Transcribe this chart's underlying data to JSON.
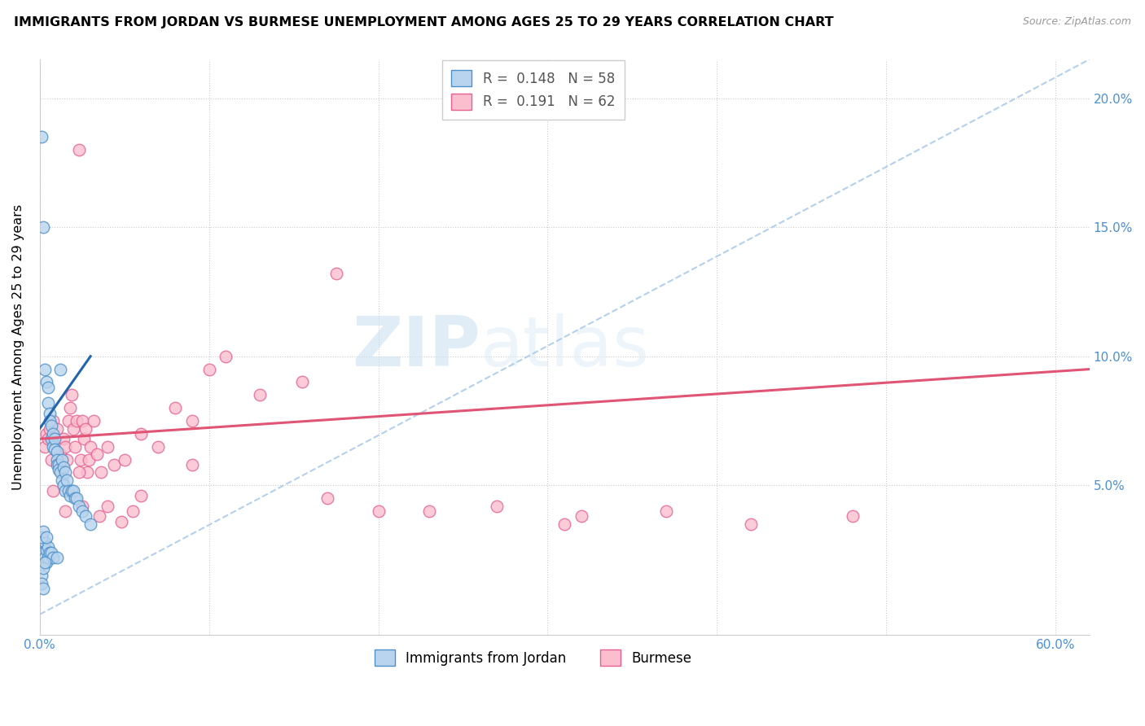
{
  "title": "IMMIGRANTS FROM JORDAN VS BURMESE UNEMPLOYMENT AMONG AGES 25 TO 29 YEARS CORRELATION CHART",
  "source": "Source: ZipAtlas.com",
  "ylabel": "Unemployment Among Ages 25 to 29 years",
  "xmin": 0.0,
  "xmax": 0.62,
  "ymin": -0.008,
  "ymax": 0.215,
  "jordan_R": "0.148",
  "jordan_N": "58",
  "burmese_R": "0.191",
  "burmese_N": "62",
  "jordan_color": "#b8d4ee",
  "burmese_color": "#fbbece",
  "jordan_edge_color": "#4e90c8",
  "burmese_edge_color": "#e86090",
  "jordan_line_color": "#2166ac",
  "burmese_line_color": "#e05575",
  "dashed_line_color": "#a8c8e8",
  "watermark_zip": "ZIP",
  "watermark_atlas": "atlas",
  "jordan_x": [
    0.001,
    0.001,
    0.002,
    0.002,
    0.003,
    0.003,
    0.003,
    0.004,
    0.004,
    0.004,
    0.005,
    0.005,
    0.005,
    0.005,
    0.006,
    0.006,
    0.006,
    0.007,
    0.007,
    0.007,
    0.008,
    0.008,
    0.008,
    0.009,
    0.009,
    0.01,
    0.01,
    0.01,
    0.01,
    0.011,
    0.011,
    0.012,
    0.012,
    0.013,
    0.013,
    0.014,
    0.014,
    0.015,
    0.015,
    0.016,
    0.017,
    0.018,
    0.019,
    0.02,
    0.021,
    0.022,
    0.023,
    0.025,
    0.027,
    0.03,
    0.001,
    0.002,
    0.004,
    0.001,
    0.002,
    0.003,
    0.001,
    0.002
  ],
  "jordan_y": [
    0.185,
    0.028,
    0.15,
    0.024,
    0.095,
    0.028,
    0.022,
    0.09,
    0.025,
    0.02,
    0.088,
    0.082,
    0.026,
    0.022,
    0.078,
    0.075,
    0.024,
    0.073,
    0.068,
    0.024,
    0.07,
    0.065,
    0.022,
    0.068,
    0.064,
    0.063,
    0.06,
    0.058,
    0.022,
    0.058,
    0.056,
    0.095,
    0.055,
    0.06,
    0.052,
    0.057,
    0.05,
    0.055,
    0.048,
    0.052,
    0.048,
    0.046,
    0.048,
    0.048,
    0.045,
    0.045,
    0.042,
    0.04,
    0.038,
    0.035,
    0.03,
    0.032,
    0.03,
    0.015,
    0.018,
    0.02,
    0.012,
    0.01
  ],
  "burmese_x": [
    0.003,
    0.004,
    0.005,
    0.006,
    0.007,
    0.008,
    0.009,
    0.01,
    0.011,
    0.012,
    0.013,
    0.014,
    0.015,
    0.016,
    0.017,
    0.018,
    0.019,
    0.02,
    0.021,
    0.022,
    0.023,
    0.024,
    0.025,
    0.026,
    0.027,
    0.028,
    0.029,
    0.03,
    0.032,
    0.034,
    0.036,
    0.04,
    0.044,
    0.05,
    0.06,
    0.07,
    0.08,
    0.09,
    0.1,
    0.11,
    0.13,
    0.155,
    0.175,
    0.2,
    0.23,
    0.27,
    0.32,
    0.37,
    0.42,
    0.48,
    0.023,
    0.04,
    0.06,
    0.09,
    0.17,
    0.31,
    0.008,
    0.015,
    0.025,
    0.035,
    0.048,
    0.055
  ],
  "burmese_y": [
    0.065,
    0.07,
    0.068,
    0.072,
    0.06,
    0.075,
    0.068,
    0.072,
    0.058,
    0.062,
    0.055,
    0.068,
    0.065,
    0.06,
    0.075,
    0.08,
    0.085,
    0.072,
    0.065,
    0.075,
    0.18,
    0.06,
    0.075,
    0.068,
    0.072,
    0.055,
    0.06,
    0.065,
    0.075,
    0.062,
    0.055,
    0.065,
    0.058,
    0.06,
    0.07,
    0.065,
    0.08,
    0.075,
    0.095,
    0.1,
    0.085,
    0.09,
    0.132,
    0.04,
    0.04,
    0.042,
    0.038,
    0.04,
    0.035,
    0.038,
    0.055,
    0.042,
    0.046,
    0.058,
    0.045,
    0.035,
    0.048,
    0.04,
    0.042,
    0.038,
    0.036,
    0.04
  ],
  "jordan_line_x": [
    0.0,
    0.03
  ],
  "jordan_line_y": [
    0.072,
    0.1
  ],
  "burmese_line_x": [
    0.0,
    0.62
  ],
  "burmese_line_y": [
    0.068,
    0.095
  ],
  "dash_line_x": [
    0.0,
    0.62
  ],
  "dash_line_y": [
    0.0,
    0.215
  ]
}
